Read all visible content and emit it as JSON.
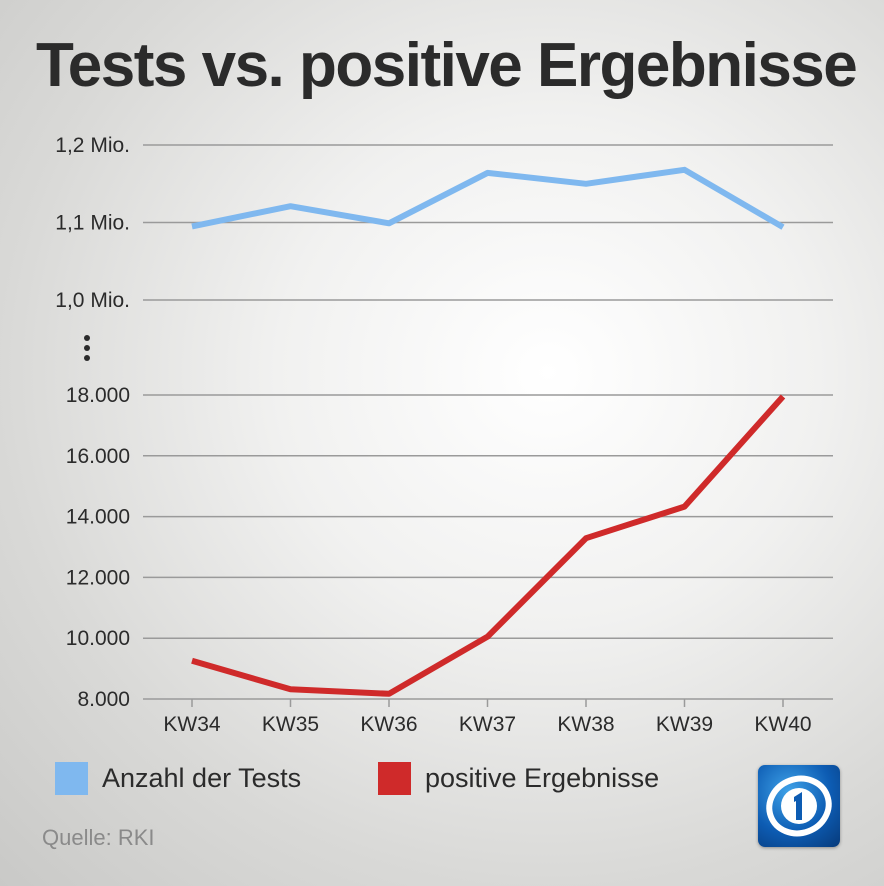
{
  "title": "Tests vs. positive Ergebnisse",
  "colors": {
    "tests": "#7fb8ef",
    "positive": "#cf2a2a",
    "grid": "#9a9a9a",
    "text": "#2b2b2b"
  },
  "legend": {
    "tests": "Anzahl der Tests",
    "positive": "positive Ergebnisse"
  },
  "source": "Quelle: RKI",
  "logo_icon": "tagesschau-logo-icon",
  "break_icon": "axis-break-dots-icon",
  "chart_data": {
    "type": "line",
    "categories": [
      "KW34",
      "KW35",
      "KW36",
      "KW37",
      "KW38",
      "KW39",
      "KW40"
    ],
    "axis_break": true,
    "upper_axis": {
      "ticks": [
        1000000,
        1100000,
        1200000
      ],
      "tick_labels": [
        "1,0 Mio.",
        "1,1 Mio.",
        "1,2 Mio."
      ],
      "ylim": [
        1000000,
        1200000
      ]
    },
    "lower_axis": {
      "ticks": [
        8000,
        10000,
        12000,
        14000,
        16000,
        18000
      ],
      "tick_labels": [
        "8.000",
        "10.000",
        "12.000",
        "14.000",
        "16.000",
        "18.000"
      ],
      "ylim": [
        8000,
        18000
      ]
    },
    "series": [
      {
        "name": "Anzahl der Tests",
        "axis": "upper",
        "values": [
          1095000,
          1121000,
          1099000,
          1164000,
          1150000,
          1168000,
          1094000
        ]
      },
      {
        "name": "positive Ergebnisse",
        "axis": "lower",
        "values": [
          9260,
          8320,
          8170,
          10050,
          13290,
          14330,
          17950
        ]
      }
    ],
    "grid": true,
    "legend_position": "bottom"
  }
}
